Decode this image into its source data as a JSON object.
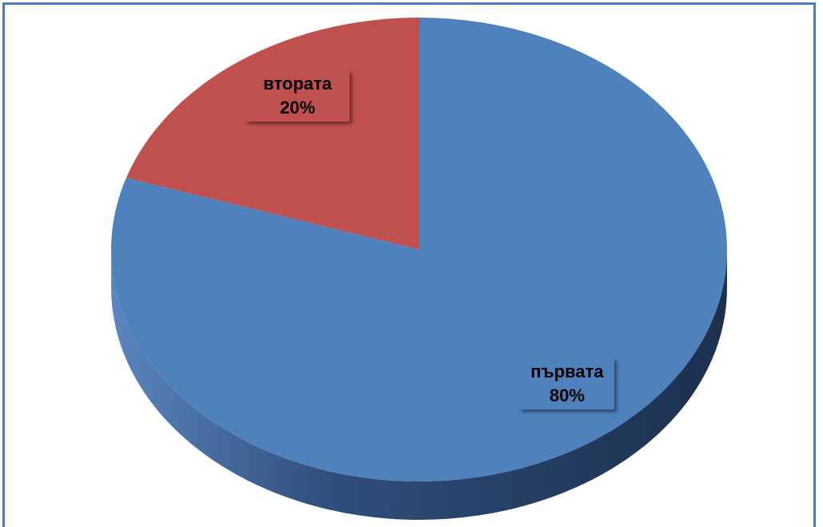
{
  "chart_data": {
    "type": "pie",
    "title": "",
    "slices": [
      {
        "label": "първата",
        "value": 80,
        "percent_label": "80%",
        "color": "#4f81bd"
      },
      {
        "label": "втората",
        "value": 20,
        "percent_label": "20%",
        "color": "#c0504d"
      }
    ],
    "style": "3d",
    "legend": "none"
  }
}
